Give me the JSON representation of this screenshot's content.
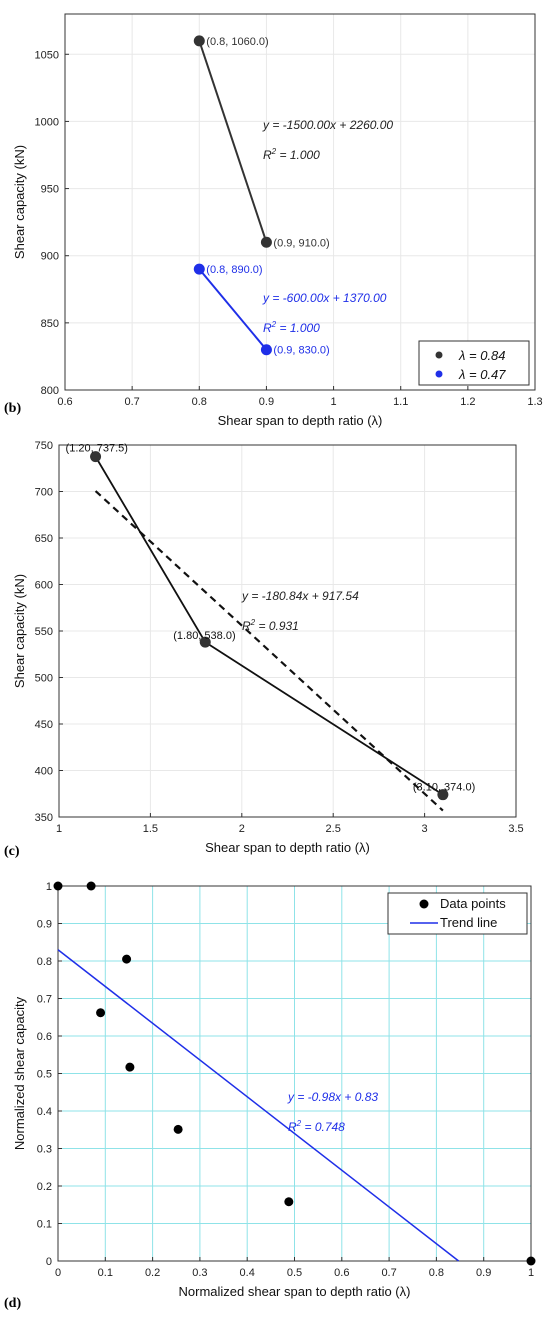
{
  "chart_data": [
    {
      "panel": "(b)",
      "type": "line",
      "xlabel": "Shear span to depth ratio (λ)",
      "ylabel": "Shear capacity (kN)",
      "xlim": [
        0.6,
        1.3
      ],
      "ylim": [
        800,
        1080
      ],
      "xticks": [
        0.6,
        0.7,
        0.8,
        0.9,
        1.0,
        1.1,
        1.2,
        1.3
      ],
      "xtick_labels": [
        "0.6",
        "0.7",
        "0.8",
        "0.9",
        "1",
        "1.1",
        "1.2",
        "1.3"
      ],
      "yticks": [
        800,
        850,
        900,
        950,
        1000,
        1050
      ],
      "grid": true,
      "legend_position": "bottom-right",
      "series": [
        {
          "name": "λ = 0.84",
          "color": "#333333",
          "x": [
            0.8,
            0.9
          ],
          "y": [
            1060,
            910
          ],
          "point_labels": [
            "(0.8, 1060.0)",
            "(0.9, 910.0)"
          ],
          "equation": "y = -1500.00x + 2260.00",
          "r2": "1.000"
        },
        {
          "name": "λ = 0.47",
          "color": "#1f2fe8",
          "x": [
            0.8,
            0.9
          ],
          "y": [
            890,
            830
          ],
          "point_labels": [
            "(0.8, 890.0)",
            "(0.9, 830.0)"
          ],
          "equation": "y = -600.00x + 1370.00",
          "r2": "1.000"
        }
      ]
    },
    {
      "panel": "(c)",
      "type": "line",
      "xlabel": "Shear span to depth ratio (λ)",
      "ylabel": "Shear capacity (kN)",
      "xlim": [
        1,
        3.5
      ],
      "ylim": [
        350,
        750
      ],
      "xticks": [
        1,
        1.5,
        2,
        2.5,
        3,
        3.5
      ],
      "xtick_labels": [
        "1",
        "1.5",
        "2",
        "2.5",
        "3",
        "3.5"
      ],
      "yticks": [
        350,
        400,
        450,
        500,
        550,
        600,
        650,
        700,
        750
      ],
      "grid": true,
      "series": [
        {
          "x": [
            1.2,
            1.8,
            3.1
          ],
          "y": [
            737.5,
            538.0,
            374.0
          ],
          "point_labels": [
            "(1.20, 737.5)",
            "(1.80, 538.0)",
            "(3.10, 374.0)"
          ],
          "color": "#111111"
        }
      ],
      "trend": {
        "x": [
          1.2,
          3.1
        ],
        "equation": "y = -180.84x + 917.54",
        "r2": "0.931",
        "slope": -180.84,
        "intercept": 917.54
      }
    },
    {
      "panel": "(d)",
      "type": "scatter",
      "xlabel": "Normalized shear span to depth ratio (λ)",
      "ylabel": "Normalized shear capacity",
      "xlim": [
        0,
        1
      ],
      "ylim": [
        0,
        1
      ],
      "xticks": [
        0,
        0.1,
        0.2,
        0.3,
        0.4,
        0.5,
        0.6,
        0.7,
        0.8,
        0.9,
        1
      ],
      "xtick_labels": [
        "0",
        "0.1",
        "0.2",
        "0.3",
        "0.4",
        "0.5",
        "0.6",
        "0.7",
        "0.8",
        "0.9",
        "1"
      ],
      "yticks": [
        0,
        0.1,
        0.2,
        0.3,
        0.4,
        0.5,
        0.6,
        0.7,
        0.8,
        0.9,
        1
      ],
      "grid": true,
      "grid_color": "#8fe3e8",
      "legend_position": "top-right",
      "legend": [
        "Data points",
        "Trend line"
      ],
      "points": {
        "x": [
          0.0,
          0.07,
          0.145,
          0.09,
          0.152,
          0.254,
          0.488,
          1.0
        ],
        "y": [
          1.0,
          1.0,
          0.805,
          0.662,
          0.517,
          0.351,
          0.158,
          0.0
        ]
      },
      "trend": {
        "x": [
          0,
          0.847
        ],
        "slope": -0.98,
        "intercept": 0.83,
        "color": "#1f2fe8"
      },
      "equation": "y = -0.98x + 0.83",
      "r2": "0.748"
    }
  ],
  "panels": [
    "(b)",
    "(c)",
    "(d)"
  ]
}
